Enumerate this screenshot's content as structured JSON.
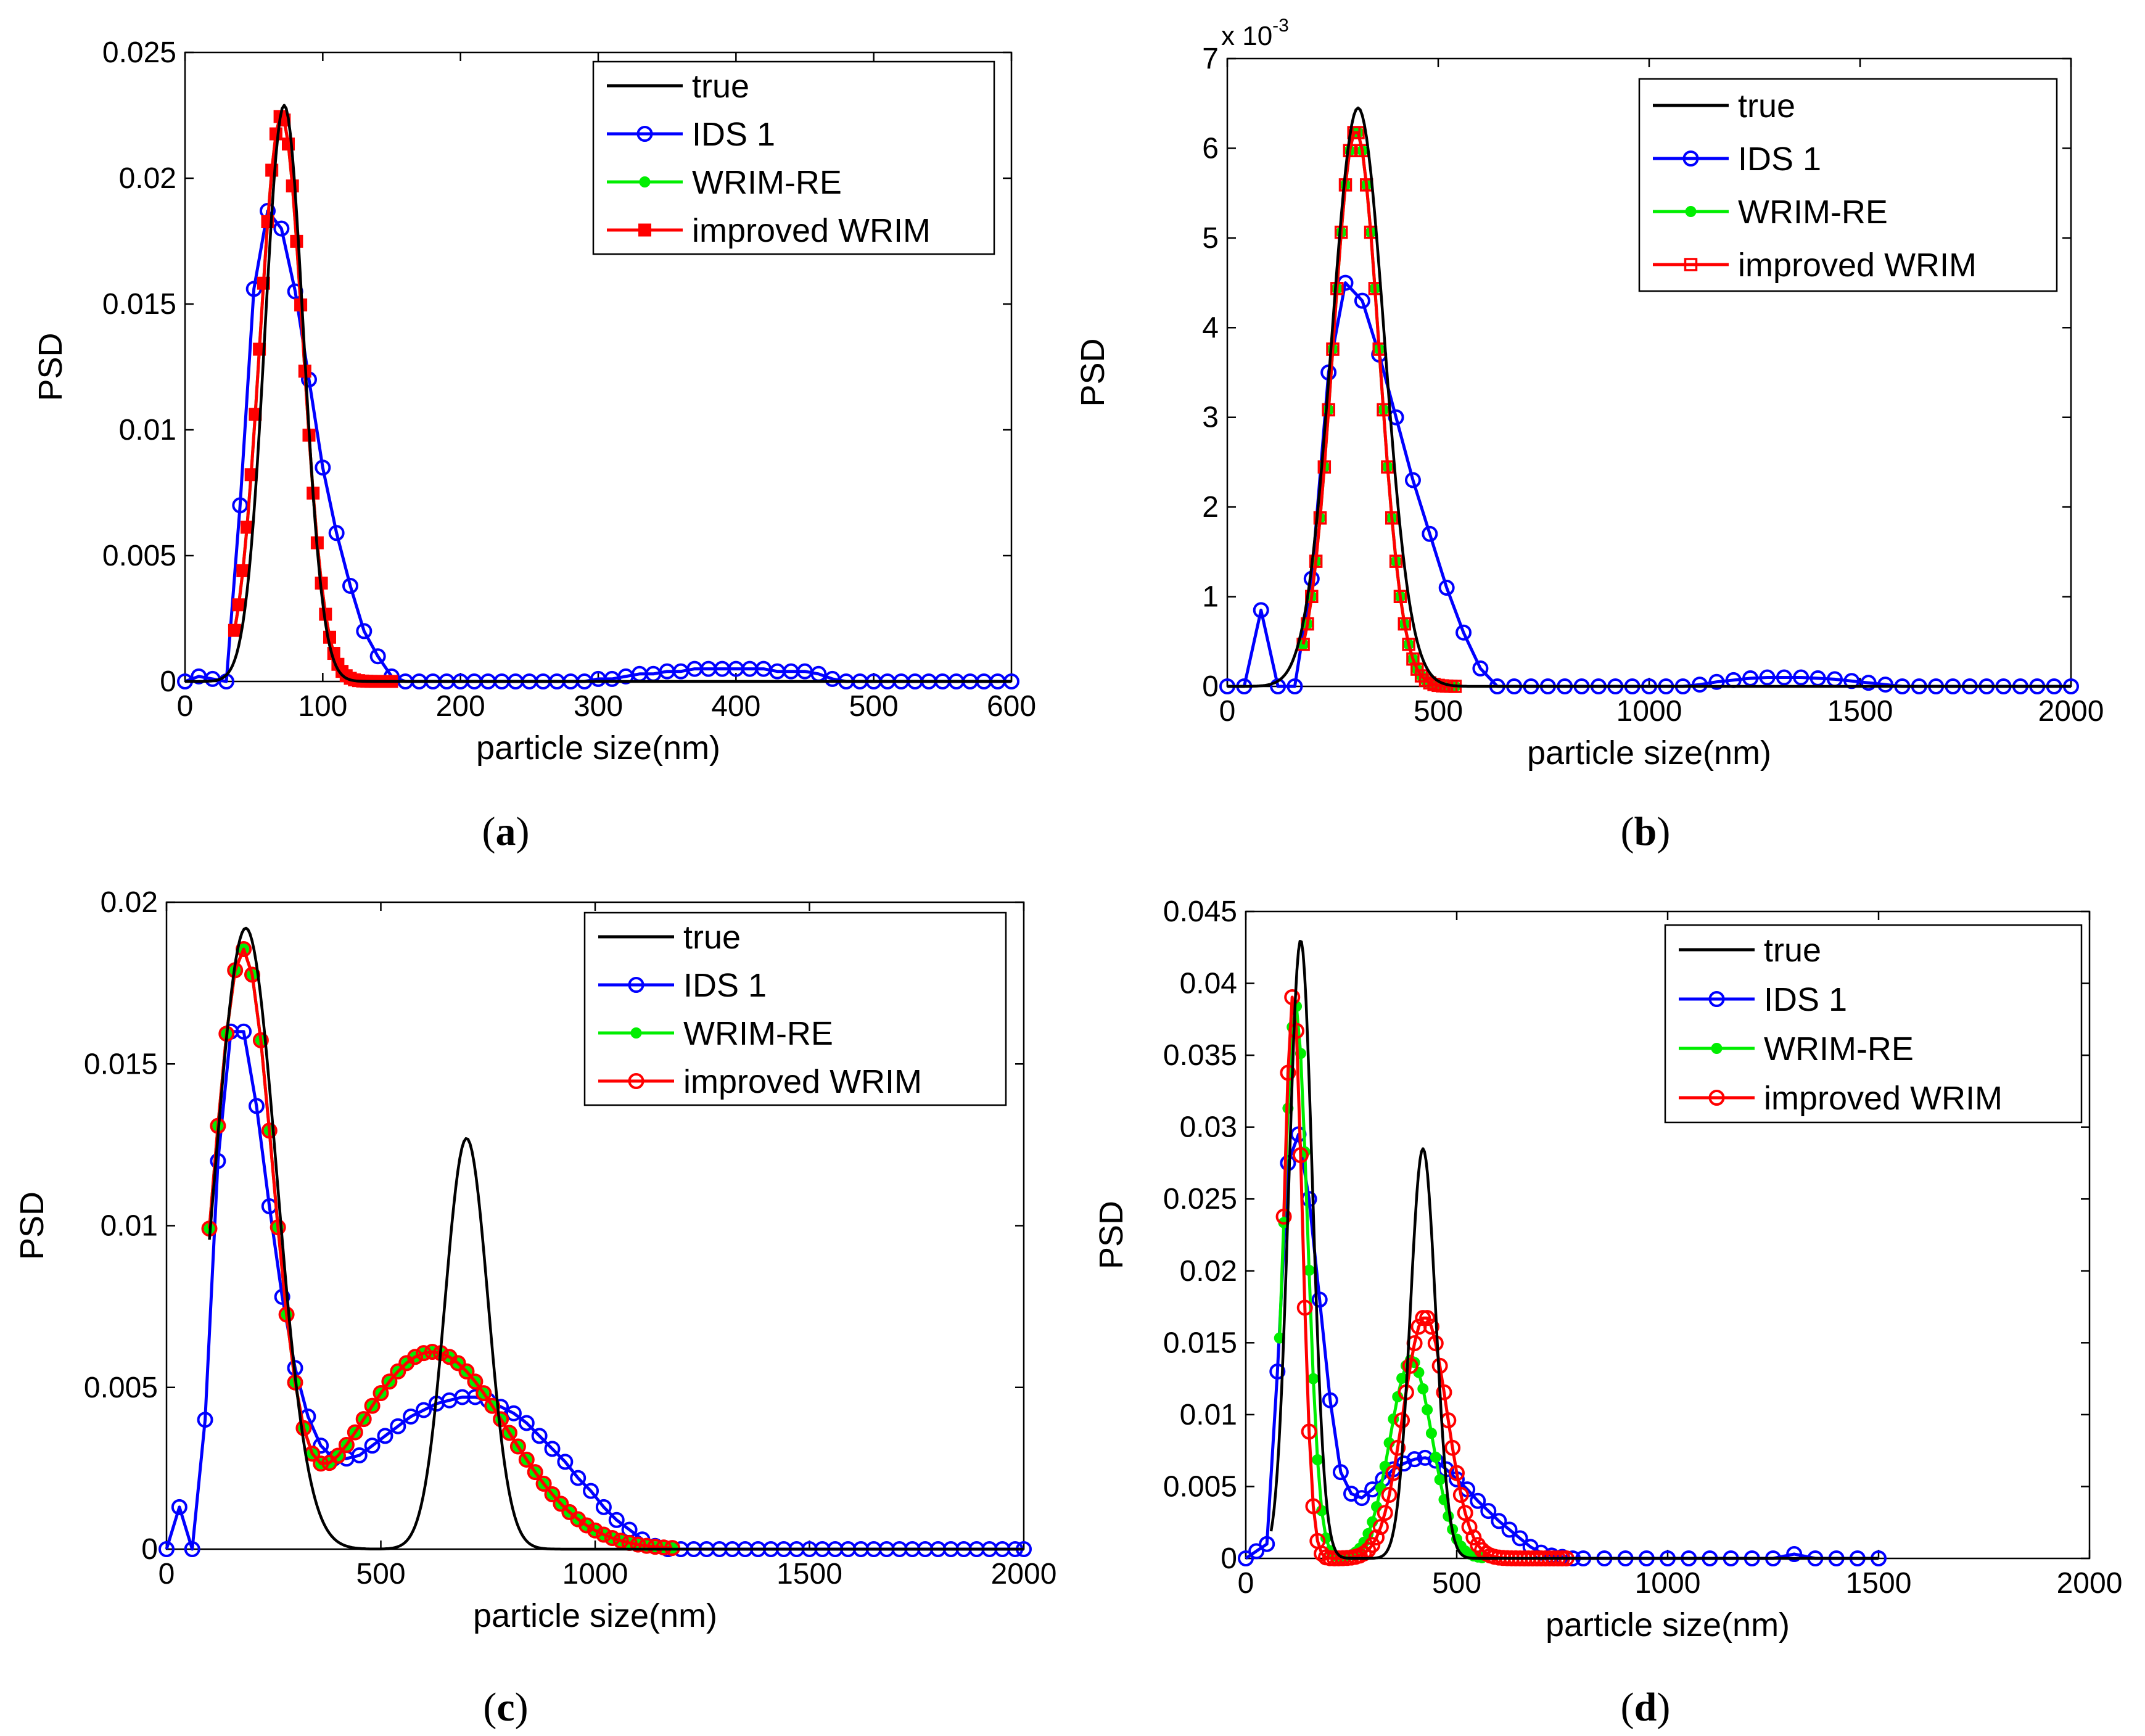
{
  "figure": {
    "captions": [
      "(a)",
      "(b)",
      "(c)",
      "(d)"
    ]
  },
  "colors": {
    "true": "#000000",
    "ids1": "#0000ff",
    "wrimre": "#00ee00",
    "improved": "#ff0000"
  },
  "chart_data": [
    {
      "id": "a",
      "type": "line",
      "caption": "(a)",
      "xlabel": "particle size(nm)",
      "ylabel": "PSD",
      "exponent": "",
      "xlim": [
        0,
        600
      ],
      "ylim": [
        0,
        0.025
      ],
      "xticks": [
        0,
        100,
        200,
        300,
        400,
        500,
        600
      ],
      "xtick_labels": [
        "0",
        "100",
        "200",
        "300",
        "400",
        "500",
        "600"
      ],
      "yticks": [
        0,
        0.005,
        0.01,
        0.015,
        0.02,
        0.025
      ],
      "ytick_labels": [
        "0",
        "0.005",
        "0.01",
        "0.015",
        "0.02",
        "0.025"
      ],
      "legend_position": "top-right",
      "series": [
        {
          "name": "true",
          "key": "true",
          "marker": "none",
          "kind": "peaks",
          "xmin": 0,
          "xmax": 600,
          "baseline": 0,
          "peaks": [
            [
              72,
              0.0229,
              14
            ]
          ]
        },
        {
          "name": "IDS 1",
          "key": "ids1",
          "marker": "circle",
          "kind": "points",
          "x": [
            0,
            10,
            20,
            30,
            40,
            50,
            60,
            70,
            80,
            90,
            100,
            110,
            120,
            130,
            140,
            150,
            160,
            170,
            180,
            190,
            200,
            210,
            220,
            230,
            240,
            250,
            260,
            270,
            280,
            290,
            300,
            310,
            320,
            330,
            340,
            350,
            360,
            370,
            380,
            390,
            400,
            410,
            420,
            430,
            440,
            450,
            460,
            470,
            480,
            490,
            500,
            510,
            520,
            530,
            540,
            550,
            560,
            570,
            580,
            590,
            600
          ],
          "y": [
            0,
            0.0002,
            0.0001,
            0,
            0.007,
            0.0156,
            0.0187,
            0.018,
            0.0155,
            0.012,
            0.0085,
            0.0059,
            0.0038,
            0.002,
            0.001,
            0.0002,
            0,
            0,
            0,
            0,
            0,
            0,
            0,
            0,
            0,
            0,
            0,
            0,
            0,
            0,
            0.0001,
            0.0001,
            0.0002,
            0.0003,
            0.0003,
            0.0004,
            0.0004,
            0.0005,
            0.0005,
            0.0005,
            0.0005,
            0.0005,
            0.0005,
            0.0004,
            0.0004,
            0.0004,
            0.0003,
            0.0001,
            0,
            0,
            0,
            0,
            0,
            0,
            0,
            0,
            0,
            0,
            0,
            0,
            0
          ]
        },
        {
          "name": "WRIM-RE",
          "key": "wrimre",
          "marker": "dot",
          "kind": "peaks",
          "xmin": 36,
          "xmax": 150,
          "step": 3,
          "baseline": 0,
          "peaks": [
            [
              70,
              0.0225,
              15.5
            ]
          ]
        },
        {
          "name": "improved WRIM",
          "key": "improved",
          "marker": "square-filled",
          "kind": "peaks",
          "xmin": 36,
          "xmax": 150,
          "step": 3,
          "baseline": 0,
          "peaks": [
            [
              70,
              0.0225,
              15.5
            ]
          ]
        }
      ]
    },
    {
      "id": "b",
      "type": "line",
      "caption": "(b)",
      "xlabel": "particle size(nm)",
      "ylabel": "PSD",
      "exponent": "x 10-3",
      "xlim": [
        0,
        2000
      ],
      "ylim": [
        0,
        0.007
      ],
      "xticks": [
        0,
        500,
        1000,
        1500,
        2000
      ],
      "xtick_labels": [
        "0",
        "500",
        "1000",
        "1500",
        "2000"
      ],
      "yticks": [
        0,
        0.001,
        0.002,
        0.003,
        0.004,
        0.005,
        0.006,
        0.007
      ],
      "ytick_labels": [
        "0",
        "1",
        "2",
        "3",
        "4",
        "5",
        "6",
        "7"
      ],
      "legend_position": "top-right",
      "series": [
        {
          "name": "true",
          "key": "true",
          "marker": "none",
          "kind": "peaks",
          "xmin": 0,
          "xmax": 2000,
          "baseline": 0,
          "peaks": [
            [
              310,
              0.00645,
              62
            ]
          ]
        },
        {
          "name": "IDS 1",
          "key": "ids1",
          "marker": "circle-open",
          "kind": "points",
          "x": [
            0,
            40,
            80,
            120,
            160,
            200,
            240,
            280,
            320,
            360,
            400,
            440,
            480,
            520,
            560,
            600,
            640,
            680,
            720,
            760,
            800,
            840,
            880,
            920,
            960,
            1000,
            1040,
            1080,
            1120,
            1160,
            1200,
            1240,
            1280,
            1320,
            1360,
            1400,
            1440,
            1480,
            1520,
            1560,
            1600,
            1640,
            1680,
            1720,
            1760,
            1800,
            1840,
            1880,
            1920,
            1960,
            2000
          ],
          "y": [
            0,
            0,
            0.00085,
            0,
            0,
            0.0012,
            0.0035,
            0.0045,
            0.0043,
            0.0037,
            0.003,
            0.0023,
            0.0017,
            0.0011,
            0.0006,
            0.0002,
            0,
            0,
            0,
            0,
            0,
            0,
            0,
            0,
            0,
            0,
            0,
            0,
            2e-05,
            5e-05,
            7e-05,
            9e-05,
            0.0001,
            0.0001,
            0.0001,
            9e-05,
            8e-05,
            6e-05,
            4e-05,
            2e-05,
            0,
            0,
            0,
            0,
            0,
            0,
            0,
            0,
            0,
            0,
            0
          ]
        },
        {
          "name": "WRIM-RE",
          "key": "wrimre",
          "marker": "dot",
          "kind": "peaks",
          "xmin": 180,
          "xmax": 540,
          "step": 10,
          "baseline": 0,
          "peaks": [
            [
              305,
              0.0062,
              55
            ]
          ]
        },
        {
          "name": "improved WRIM",
          "key": "improved",
          "marker": "square-open",
          "kind": "peaks",
          "xmin": 180,
          "xmax": 540,
          "step": 10,
          "baseline": 0,
          "peaks": [
            [
              305,
              0.0062,
              55
            ]
          ]
        }
      ]
    },
    {
      "id": "c",
      "type": "line",
      "caption": "(c)",
      "xlabel": "particle size(nm)",
      "ylabel": "PSD",
      "exponent": "",
      "xlim": [
        0,
        2000
      ],
      "ylim": [
        0,
        0.02
      ],
      "xticks": [
        0,
        500,
        1000,
        1500,
        2000
      ],
      "xtick_labels": [
        "0",
        "500",
        "1000",
        "1500",
        "2000"
      ],
      "yticks": [
        0,
        0.005,
        0.01,
        0.015,
        0.02
      ],
      "ytick_labels": [
        "0",
        "0.005",
        "0.01",
        "0.015",
        "0.02"
      ],
      "legend_position": "top-right",
      "series": [
        {
          "name": "true",
          "key": "true",
          "marker": "none",
          "kind": "peaks",
          "xmin": 100,
          "xmax": 2000,
          "baseline": 0,
          "peaks": [
            [
              185,
              0.0192,
              72
            ],
            [
              700,
              0.0127,
              50
            ]
          ]
        },
        {
          "name": "IDS 1",
          "key": "ids1",
          "marker": "circle",
          "kind": "points",
          "x": [
            0,
            30,
            60,
            90,
            120,
            150,
            180,
            210,
            240,
            270,
            300,
            330,
            360,
            390,
            420,
            450,
            480,
            510,
            540,
            570,
            600,
            630,
            660,
            690,
            720,
            750,
            780,
            810,
            840,
            870,
            900,
            930,
            960,
            990,
            1020,
            1050,
            1080,
            1110,
            1140,
            1170,
            1200,
            1230,
            1260,
            1290,
            1320,
            1350,
            1380,
            1410,
            1440,
            1470,
            1500,
            1530,
            1560,
            1590,
            1620,
            1650,
            1680,
            1710,
            1740,
            1770,
            1800,
            1830,
            1860,
            1890,
            1920,
            1950,
            1980,
            2000
          ],
          "y": [
            0,
            0.0013,
            0,
            0.004,
            0.012,
            0.016,
            0.016,
            0.0137,
            0.0106,
            0.0078,
            0.0056,
            0.0041,
            0.0032,
            0.0028,
            0.0028,
            0.0029,
            0.0032,
            0.0035,
            0.0038,
            0.0041,
            0.0043,
            0.0045,
            0.0046,
            0.0047,
            0.0047,
            0.0046,
            0.0044,
            0.0042,
            0.0039,
            0.0035,
            0.0031,
            0.0027,
            0.0022,
            0.0018,
            0.0013,
            0.0009,
            0.0006,
            0.0003,
            0.0001,
            0,
            0,
            0,
            0,
            0,
            0,
            0,
            0,
            0,
            0,
            0,
            0,
            0,
            0,
            0,
            0,
            0,
            0,
            0,
            0,
            0,
            0,
            0,
            0,
            0,
            0,
            0,
            0,
            0
          ]
        },
        {
          "name": "WRIM-RE",
          "key": "wrimre",
          "marker": "dot",
          "kind": "peaks",
          "xmin": 100,
          "xmax": 1180,
          "step": 20,
          "baseline": 0,
          "peaks": [
            [
              178,
              0.0183,
              70
            ],
            [
              620,
              0.0061,
              175
            ]
          ]
        },
        {
          "name": "improved WRIM",
          "key": "improved",
          "marker": "circle",
          "kind": "peaks",
          "xmin": 100,
          "xmax": 1180,
          "step": 20,
          "baseline": 0,
          "peaks": [
            [
              178,
              0.0183,
              70
            ],
            [
              620,
              0.0061,
              175
            ]
          ]
        }
      ]
    },
    {
      "id": "d",
      "type": "line",
      "caption": "(d)",
      "xlabel": "particle size(nm)",
      "ylabel": "PSD",
      "exponent": "",
      "xlim": [
        0,
        2000
      ],
      "ylim": [
        0,
        0.045
      ],
      "xticks": [
        0,
        500,
        1000,
        1500,
        2000
      ],
      "xtick_labels": [
        "0",
        "500",
        "1000",
        "1500",
        "2000"
      ],
      "yticks": [
        0,
        0.005,
        0.01,
        0.015,
        0.02,
        0.025,
        0.03,
        0.035,
        0.04,
        0.045
      ],
      "ytick_labels": [
        "0",
        "0.005",
        "0.01",
        "0.015",
        "0.02",
        "0.025",
        "0.03",
        "0.035",
        "0.04",
        "0.045"
      ],
      "legend_position": "top-right",
      "series": [
        {
          "name": "true",
          "key": "true",
          "marker": "none",
          "kind": "peaks",
          "xmin": 60,
          "xmax": 1500,
          "baseline": 0,
          "peaks": [
            [
              130,
              0.043,
              28
            ],
            [
              420,
              0.0285,
              30
            ]
          ]
        },
        {
          "name": "IDS 1",
          "key": "ids1",
          "marker": "circle",
          "kind": "points",
          "x": [
            0,
            25,
            50,
            75,
            100,
            125,
            150,
            175,
            200,
            225,
            250,
            275,
            300,
            325,
            350,
            375,
            400,
            425,
            450,
            475,
            500,
            525,
            550,
            575,
            600,
            625,
            650,
            675,
            700,
            725,
            750,
            775,
            800,
            850,
            900,
            950,
            1000,
            1050,
            1100,
            1150,
            1200,
            1250,
            1300,
            1350,
            1400,
            1450,
            1500
          ],
          "y": [
            0,
            0.0005,
            0.001,
            0.013,
            0.0275,
            0.0295,
            0.025,
            0.018,
            0.011,
            0.006,
            0.0045,
            0.0042,
            0.0048,
            0.0055,
            0.0062,
            0.0066,
            0.0069,
            0.007,
            0.0068,
            0.0062,
            0.0055,
            0.0048,
            0.004,
            0.0033,
            0.0026,
            0.002,
            0.0014,
            0.0008,
            0.0004,
            0.0002,
            0.0001,
            0,
            0,
            0,
            0,
            0,
            0,
            0,
            0,
            0,
            0,
            0,
            0.0003,
            0,
            0,
            0,
            0
          ]
        },
        {
          "name": "WRIM-RE",
          "key": "wrimre",
          "marker": "dot",
          "kind": "peaks",
          "xmin": 80,
          "xmax": 560,
          "step": 10,
          "baseline": 0,
          "peaks": [
            [
              118,
              0.0385,
              28
            ],
            [
              392,
              0.0138,
              50
            ]
          ]
        },
        {
          "name": "improved WRIM",
          "key": "improved",
          "marker": "circle",
          "kind": "peaks",
          "xmin": 90,
          "xmax": 760,
          "step": 10,
          "baseline": 0,
          "peaks": [
            [
              112,
              0.0392,
              22
            ],
            [
              425,
              0.0168,
              52
            ]
          ]
        }
      ]
    }
  ]
}
